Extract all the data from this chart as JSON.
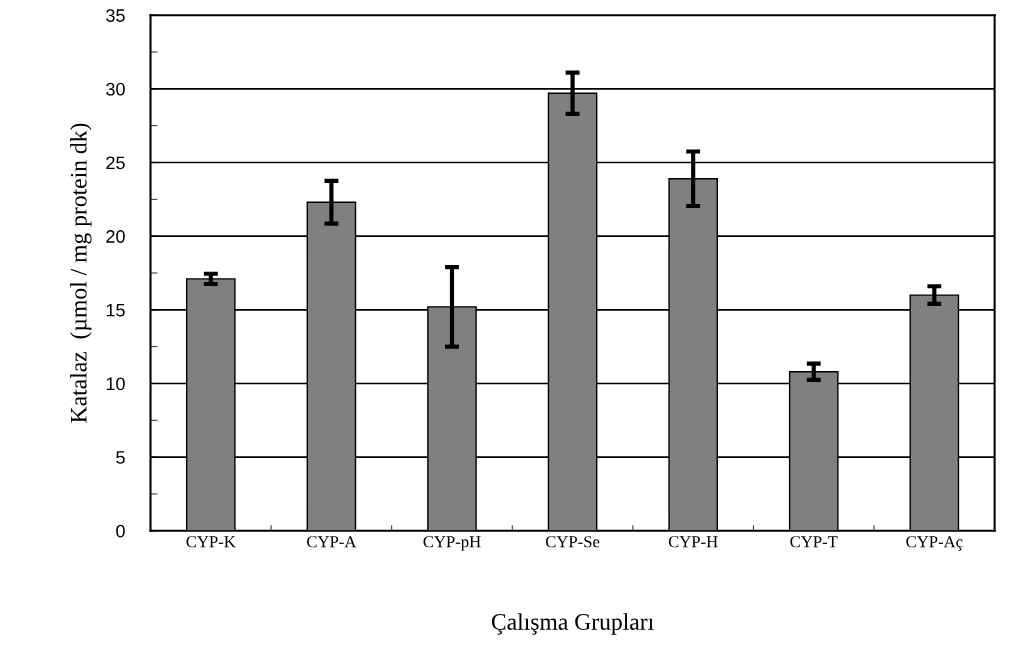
{
  "chart_data": {
    "type": "bar",
    "xlabel": "Çalışma Grupları",
    "ylabel": "Katalaz  (µmol / mg protein dk)",
    "categories": [
      "CYP-K",
      "CYP-A",
      "CYP-pH",
      "CYP-Se",
      "CYP-H",
      "CYP-T",
      "CYP-Aç"
    ],
    "values": [
      17.1,
      22.3,
      15.2,
      29.7,
      23.9,
      10.8,
      16.0
    ],
    "errors": [
      0.35,
      1.45,
      2.7,
      1.4,
      1.85,
      0.55,
      0.6
    ],
    "color": "#808080",
    "ylim": [
      0,
      35
    ],
    "yticks": [
      0,
      5,
      10,
      15,
      20,
      25,
      30,
      35
    ],
    "grid": "y"
  }
}
